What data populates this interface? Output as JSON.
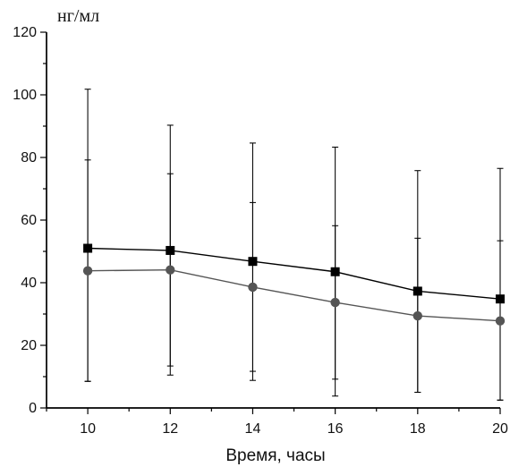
{
  "chart_data": {
    "type": "line",
    "title": "",
    "xlabel": "Время, часы",
    "ylabel": "нг/мл",
    "x": [
      10,
      12,
      14,
      16,
      18,
      20
    ],
    "xlim": [
      9,
      20
    ],
    "ylim": [
      0,
      120
    ],
    "x_ticks": [
      10,
      12,
      14,
      16,
      18,
      20
    ],
    "y_ticks": [
      0,
      20,
      40,
      60,
      80,
      100,
      120
    ],
    "grid": false,
    "legend": "none",
    "series": [
      {
        "marker": "square",
        "color": "#000000",
        "values": [
          51,
          50.3,
          46.8,
          43.5,
          37.3,
          34.8
        ],
        "error_low": [
          8.5,
          10.5,
          8.8,
          3.8,
          5,
          2.5
        ],
        "error_high": [
          101.8,
          90.3,
          84.6,
          83.3,
          75.8,
          76.5
        ]
      },
      {
        "marker": "circle",
        "color": "#555555",
        "values": [
          43.8,
          44.1,
          38.6,
          33.7,
          29.4,
          27.8
        ],
        "error_low": [
          8.5,
          13.4,
          11.7,
          9.2,
          5,
          2.5
        ],
        "error_high": [
          79.2,
          74.8,
          65.6,
          58.2,
          54.2,
          53.4
        ]
      }
    ]
  }
}
